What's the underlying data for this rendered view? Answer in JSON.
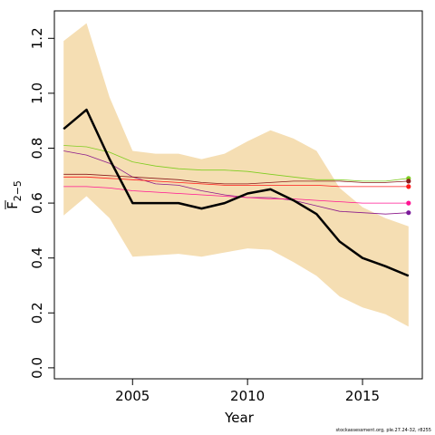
{
  "chart_data": {
    "type": "line",
    "title": "",
    "xlabel": "Year",
    "ylabel_main": "F",
    "ylabel_sub": "2−5",
    "xlim": [
      2001.6,
      2017.6
    ],
    "ylim": [
      -0.04,
      1.3
    ],
    "xticks": [
      2005,
      2010,
      2015
    ],
    "yticks": [
      0.0,
      0.2,
      0.4,
      0.6,
      0.8,
      1.0,
      1.2
    ],
    "ytick_labels": [
      "0.0",
      "0.2",
      "0.4",
      "0.6",
      "0.8",
      "1.0",
      "1.2"
    ],
    "grid": false,
    "legend": "none",
    "x": [
      2002,
      2003,
      2004,
      2005,
      2006,
      2007,
      2008,
      2009,
      2010,
      2011,
      2012,
      2013,
      2014,
      2015,
      2016,
      2017
    ],
    "band": {
      "color": "#f5deb3",
      "lower": [
        0.555,
        0.625,
        0.545,
        0.405,
        0.41,
        0.415,
        0.405,
        0.42,
        0.435,
        0.43,
        0.385,
        0.335,
        0.26,
        0.22,
        0.195,
        0.15
      ],
      "upper": [
        1.19,
        1.255,
        0.985,
        0.79,
        0.78,
        0.78,
        0.76,
        0.78,
        0.825,
        0.865,
        0.835,
        0.79,
        0.655,
        0.585,
        0.545,
        0.515
      ]
    },
    "series": [
      {
        "color": "#000000",
        "width": 2.5,
        "values": [
          0.87,
          0.94,
          0.76,
          0.6,
          0.6,
          0.6,
          0.58,
          0.6,
          0.635,
          0.65,
          0.61,
          0.56,
          0.46,
          0.4,
          0.37,
          0.335
        ]
      },
      {
        "color": "#7fcd20",
        "width": 0.8,
        "values": [
          0.81,
          0.805,
          0.785,
          0.75,
          0.735,
          0.725,
          0.72,
          0.72,
          0.715,
          0.705,
          0.695,
          0.685,
          0.685,
          0.68,
          0.68,
          0.69
        ]
      },
      {
        "color": "#8b1a8b",
        "width": 0.8,
        "values": [
          0.79,
          0.775,
          0.745,
          0.695,
          0.67,
          0.665,
          0.645,
          0.63,
          0.62,
          0.62,
          0.61,
          0.59,
          0.57,
          0.565,
          0.56,
          0.565
        ]
      },
      {
        "color": "#8b1a1a",
        "width": 0.8,
        "values": [
          0.705,
          0.705,
          0.7,
          0.695,
          0.69,
          0.685,
          0.675,
          0.67,
          0.67,
          0.675,
          0.68,
          0.68,
          0.68,
          0.675,
          0.675,
          0.68
        ]
      },
      {
        "color": "#ff1a1a",
        "width": 0.8,
        "values": [
          0.695,
          0.695,
          0.69,
          0.685,
          0.68,
          0.675,
          0.67,
          0.665,
          0.665,
          0.665,
          0.665,
          0.665,
          0.66,
          0.66,
          0.66,
          0.66
        ]
      },
      {
        "color": "#ff1493",
        "width": 0.8,
        "values": [
          0.66,
          0.66,
          0.655,
          0.645,
          0.64,
          0.635,
          0.63,
          0.625,
          0.62,
          0.615,
          0.615,
          0.61,
          0.605,
          0.6,
          0.6,
          0.6
        ]
      }
    ],
    "endpoints": [
      {
        "color": "#7fcd20",
        "y": 0.69
      },
      {
        "color": "#8b1a1a",
        "y": 0.68
      },
      {
        "color": "#ff1a1a",
        "y": 0.66
      },
      {
        "color": "#ff1493",
        "y": 0.6
      },
      {
        "color": "#7a1a9a",
        "y": 0.565
      }
    ]
  },
  "credit": "stockassessment.org, ple.27.24-32, r8255"
}
